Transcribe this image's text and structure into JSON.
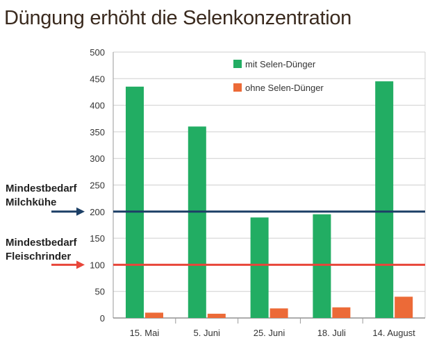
{
  "title": "Düngung erhöht die Selenkonzentration",
  "annotations": [
    {
      "lines": [
        "Mindestbedarf",
        "Milchkühe"
      ],
      "value": 200,
      "color": "#1c3f66"
    },
    {
      "lines": [
        "Mindestbedarf",
        "Fleischrinder"
      ],
      "value": 100,
      "color": "#e8463a"
    }
  ],
  "chart_data": {
    "type": "bar",
    "title": "Düngung erhöht die Selenkonzentration",
    "categories": [
      "15. Mai",
      "5. Juni",
      "25. Juni",
      "18. Juli",
      "14. August"
    ],
    "series": [
      {
        "name": "mit Selen-Dünger",
        "color": "#22ad63",
        "values": [
          435,
          360,
          189,
          195,
          445
        ]
      },
      {
        "name": "ohne Selen-Dünger",
        "color": "#ec6a37",
        "values": [
          10,
          8,
          18,
          20,
          40
        ]
      }
    ],
    "ylim": [
      0,
      500
    ],
    "yticks": [
      0,
      50,
      100,
      150,
      200,
      250,
      300,
      350,
      400,
      450,
      500
    ],
    "grid": true,
    "legend": "top",
    "reference_lines": [
      {
        "label": "Mindestbedarf Milchkühe",
        "value": 200,
        "color": "#1c3f66"
      },
      {
        "label": "Mindestbedarf Fleischrinder",
        "value": 100,
        "color": "#e8463a"
      }
    ]
  }
}
